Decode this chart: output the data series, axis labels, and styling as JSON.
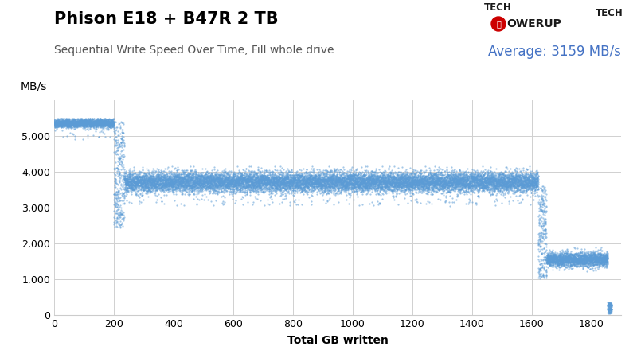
{
  "title": "Phison E18 + B47R 2 TB",
  "subtitle": "Sequential Write Speed Over Time, Fill whole drive",
  "average_text": "Average: 3159 MB/s",
  "xlabel": "Total GB written",
  "ylabel": "MB/s",
  "xlim": [
    0,
    1900
  ],
  "ylim": [
    0,
    6000
  ],
  "xticks": [
    0,
    200,
    400,
    600,
    800,
    1000,
    1200,
    1400,
    1600,
    1800
  ],
  "yticks": [
    0,
    1000,
    2000,
    3000,
    4000,
    5000
  ],
  "title_fontsize": 15,
  "subtitle_fontsize": 10,
  "average_fontsize": 12,
  "axis_label_fontsize": 10,
  "tick_fontsize": 9,
  "data_color": "#5b9bd5",
  "background_color": "#ffffff",
  "grid_color": "#d0d0d0",
  "average_color": "#4472c4",
  "title_color": "#000000",
  "subtitle_color": "#555555"
}
